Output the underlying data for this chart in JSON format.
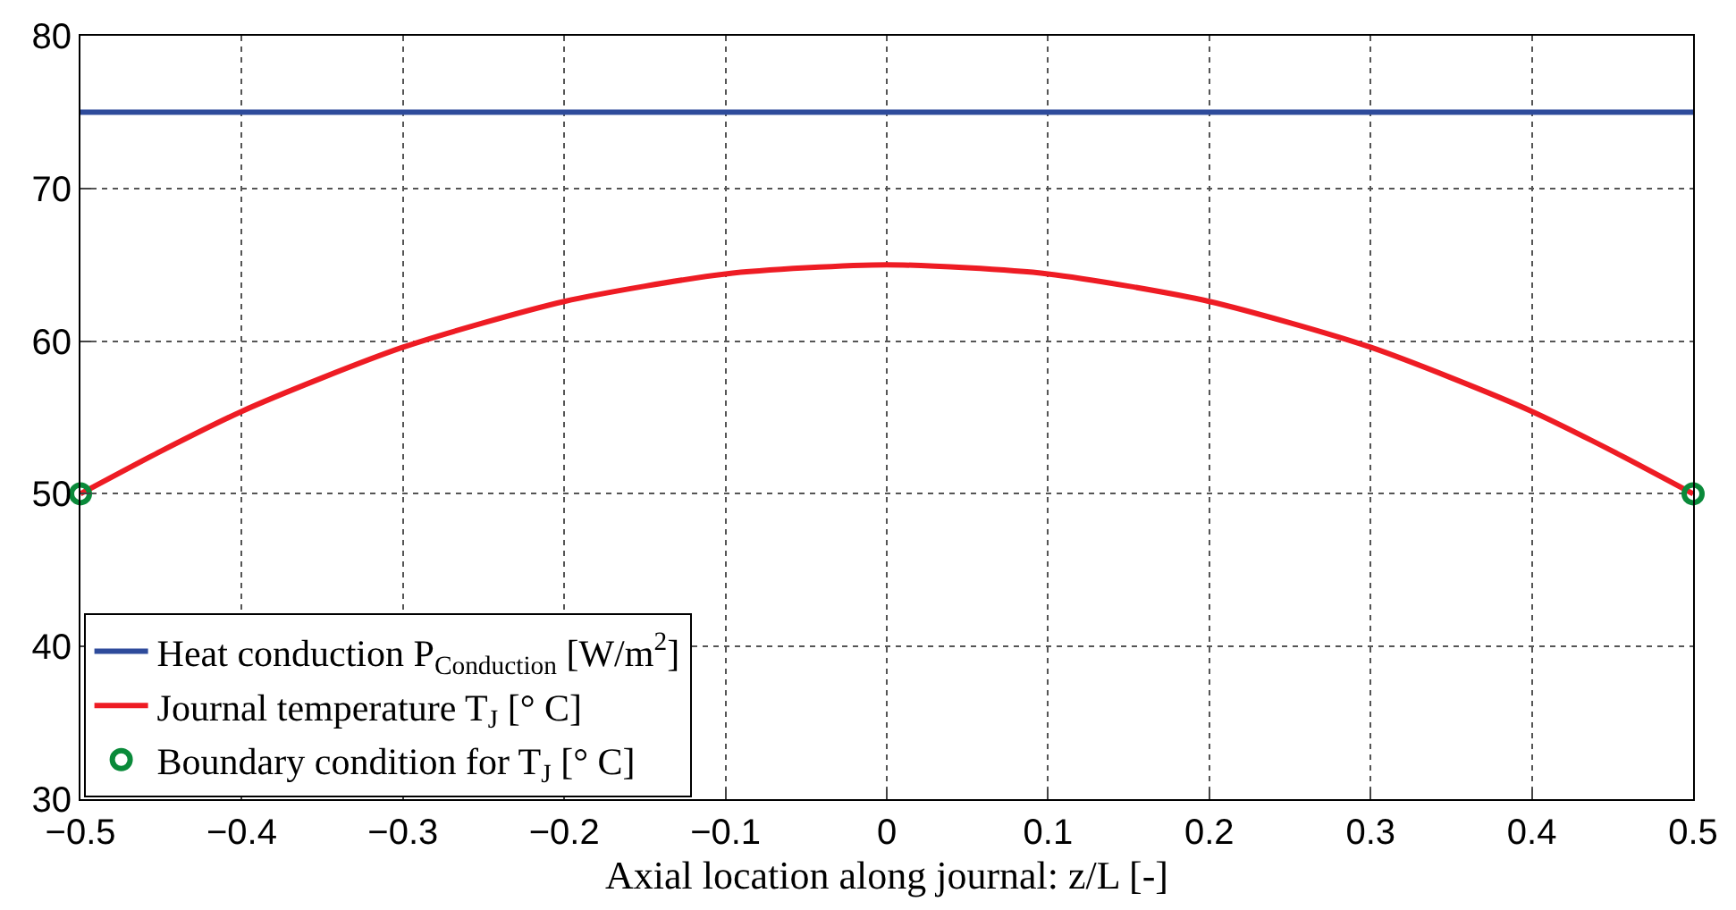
{
  "chart_data": {
    "type": "line",
    "xlabel": "Axial location along journal: z/L [-]",
    "xlim": [
      -0.5,
      0.5
    ],
    "xticks": [
      -0.5,
      -0.4,
      -0.3,
      -0.2,
      -0.1,
      0,
      0.1,
      0.2,
      0.3,
      0.4,
      0.5
    ],
    "ylim": [
      30,
      80
    ],
    "yticks": [
      30,
      40,
      50,
      60,
      70,
      80
    ],
    "grid": true,
    "legend": "bottom left",
    "line_style": "solid",
    "series": [
      {
        "name": "Heat conduction P$_{Conduction}$ [W/m$^{2}$]",
        "color": "#2e4b9b",
        "x": [
          -0.5,
          0.5
        ],
        "values": [
          75,
          75
        ]
      },
      {
        "name": "Journal temperature T$_{J}$ [° C]",
        "color": "#ee1c24",
        "x": [
          -0.5,
          -0.45,
          -0.4,
          -0.35,
          -0.3,
          -0.25,
          -0.2,
          -0.15,
          -0.1,
          -0.05,
          0,
          0.05,
          0.1,
          0.15,
          0.2,
          0.25,
          0.3,
          0.35,
          0.4,
          0.45,
          0.5
        ],
        "values": [
          50,
          52.8,
          55.4,
          57.6,
          59.6,
          61.2,
          62.6,
          63.6,
          64.4,
          64.8,
          65,
          64.8,
          64.4,
          63.6,
          62.6,
          61.2,
          59.6,
          57.6,
          55.4,
          52.8,
          50
        ]
      },
      {
        "name": "Boundary condition for T$_{J}$ [° C]",
        "color": "#0a8a3a",
        "type": "scatter",
        "marker": "circle",
        "x": [
          -0.5,
          0.5
        ],
        "values": [
          50,
          50
        ]
      }
    ]
  }
}
